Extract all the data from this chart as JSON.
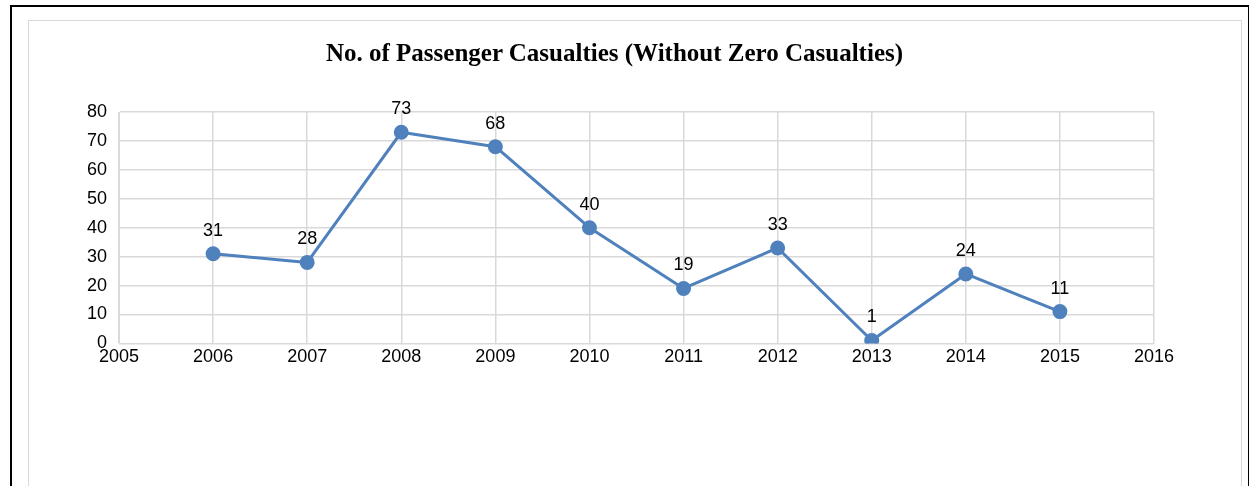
{
  "chart_data": {
    "type": "line",
    "title": "No. of Passenger Casualties (Without Zero Casualties)",
    "x": [
      2006,
      2007,
      2008,
      2009,
      2010,
      2011,
      2012,
      2013,
      2014,
      2015
    ],
    "series": [
      {
        "color": "#4f81bd",
        "values": [
          31,
          28,
          73,
          68,
          40,
          19,
          33,
          1,
          24,
          11
        ]
      }
    ],
    "xlim": [
      2005,
      2016
    ],
    "xticks": [
      2005,
      2006,
      2007,
      2008,
      2009,
      2010,
      2011,
      2012,
      2013,
      2014,
      2015,
      2016
    ],
    "ylim": [
      0,
      80
    ],
    "yticks": [
      0,
      10,
      20,
      30,
      40,
      50,
      60,
      70,
      80
    ],
    "grid": true,
    "legend": false,
    "marker": "circle",
    "line_style": "solid",
    "data_labels": true
  }
}
